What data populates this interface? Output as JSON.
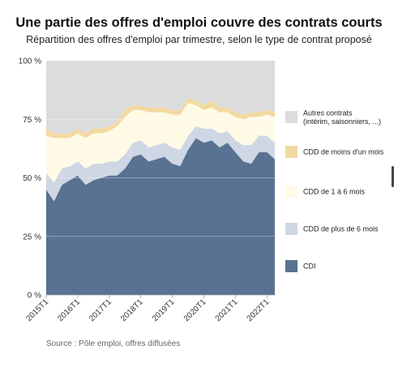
{
  "title": "Une partie des offres d'emploi couvre des contrats courts",
  "subtitle": "Répartition des offres d'emploi par trimestre, selon le type de contrat proposé",
  "source": "Source : Pôle emploi, offres diffusées",
  "colors": {
    "cdi": "#5a7291",
    "cdd_plus6": "#cfd7e4",
    "cdd_1a6": "#fefae6",
    "cdd_moins1": "#f2d9a0",
    "autres": "#dcdcdc"
  },
  "chart_data": {
    "type": "area",
    "stacked": true,
    "title": "Une partie des offres d'emploi couvre des contrats courts",
    "xlabel": "",
    "ylabel": "",
    "ylim": [
      0,
      100
    ],
    "yticks": [
      "0 %",
      "25 %",
      "50 %",
      "75 %",
      "100 %"
    ],
    "ytick_values": [
      0,
      25,
      50,
      75,
      100
    ],
    "xtick_labels": [
      "2015T1",
      "2016T1",
      "2017T1",
      "2018T1",
      "2019T1",
      "2020T1",
      "2021T1",
      "2022T1"
    ],
    "xtick_indices": [
      0,
      4,
      8,
      12,
      16,
      20,
      24,
      28
    ],
    "x": [
      "2015T1",
      "2015T2",
      "2015T3",
      "2015T4",
      "2016T1",
      "2016T2",
      "2016T3",
      "2016T4",
      "2017T1",
      "2017T2",
      "2017T3",
      "2017T4",
      "2018T1",
      "2018T2",
      "2018T3",
      "2018T4",
      "2019T1",
      "2019T2",
      "2019T3",
      "2019T4",
      "2020T1",
      "2020T2",
      "2020T3",
      "2020T4",
      "2021T1",
      "2021T2",
      "2021T3",
      "2021T4",
      "2022T1",
      "2022T2"
    ],
    "grid": true,
    "legend_position": "right",
    "series": [
      {
        "name": "CDI",
        "key": "cdi",
        "values": [
          45,
          40,
          47,
          49,
          51,
          47,
          49,
          50,
          51,
          51,
          54,
          59,
          60,
          57,
          58,
          59,
          56,
          55,
          62,
          67,
          65,
          66,
          63,
          65,
          61,
          57,
          56,
          61,
          61,
          58
        ]
      },
      {
        "name": "CDD de plus de 6 mois",
        "key": "cdd_plus6",
        "values": [
          7,
          8,
          7,
          6,
          6,
          7,
          7,
          6,
          6,
          6,
          6,
          6,
          6,
          6,
          6,
          6,
          7,
          7,
          6,
          5,
          6,
          5,
          6,
          5,
          5,
          7,
          8,
          7,
          7,
          7
        ]
      },
      {
        "name": "CDD de 1 à 6 mois",
        "key": "cdd_1a6",
        "values": [
          16,
          19,
          13,
          12,
          12,
          13,
          13,
          13,
          13,
          15,
          16,
          14,
          13,
          15,
          14,
          13,
          14,
          15,
          14,
          9,
          8,
          9,
          9,
          8,
          10,
          11,
          12,
          8,
          9,
          11
        ]
      },
      {
        "name": "CDD de moins d'un mois",
        "key": "cdd_moins1",
        "values": [
          3,
          2,
          2,
          2,
          2,
          2,
          2,
          2,
          2,
          2,
          3,
          2,
          2,
          2,
          2,
          2,
          2,
          2,
          2,
          2,
          2,
          3,
          2,
          2,
          2,
          2,
          2,
          2,
          2,
          2
        ]
      },
      {
        "name": "Autres contrats\n(intérim, saisonniers, ...)",
        "key": "autres",
        "values": [
          29,
          31,
          31,
          31,
          29,
          31,
          29,
          29,
          28,
          26,
          21,
          19,
          19,
          20,
          20,
          20,
          21,
          21,
          16,
          17,
          19,
          17,
          20,
          20,
          22,
          23,
          22,
          22,
          21,
          22
        ]
      }
    ],
    "legend_order": [
      "autres",
      "cdd_moins1",
      "cdd_1a6",
      "cdd_plus6",
      "cdi"
    ]
  }
}
